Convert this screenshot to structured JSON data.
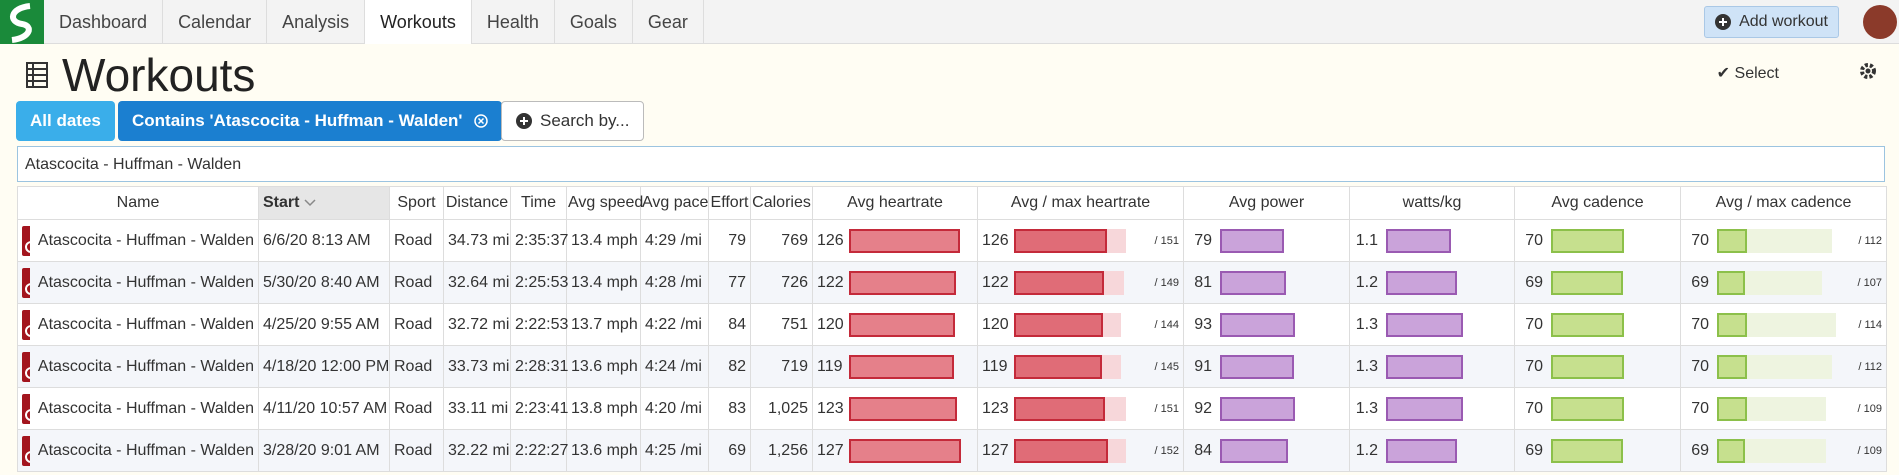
{
  "nav": {
    "tabs": [
      "Dashboard",
      "Calendar",
      "Analysis",
      "Workouts",
      "Health",
      "Goals",
      "Gear"
    ],
    "active": 3,
    "add_button": "Add workout"
  },
  "header": {
    "title": "Workouts",
    "select": "Select"
  },
  "filters": {
    "all_dates": "All dates",
    "contains": "Contains 'Atascocita - Huffman - Walden'",
    "search_by": "Search by..."
  },
  "search": {
    "value": "Atascocita - Huffman - Walden"
  },
  "table": {
    "columns": [
      "Name",
      "Start",
      "Sport",
      "Distance",
      "Time",
      "Avg speed",
      "Avg pace",
      "Effort",
      "Calories",
      "Avg heartrate",
      "Avg / max heartrate",
      "Avg power",
      "watts/kg",
      "Avg cadence",
      "Avg / max cadence"
    ],
    "rows": [
      {
        "name": "Atascocita - Huffman - Walden",
        "start": "6/6/20 8:13 AM",
        "sport": "Road",
        "distance": "34.73 mi",
        "time": "2:35:37",
        "avg_speed": "13.4 mph",
        "avg_pace": "4:29 /mi",
        "effort": 79,
        "calories": 769,
        "avg_heartrate": 126,
        "max_heartrate": {
          "value": 151,
          "label": "/ 151"
        },
        "avg_power": 79,
        "watts_per_kg": 1.1,
        "avg_cadence": 70,
        "max_cadence": {
          "value": 112,
          "label": "/ 112"
        }
      },
      {
        "name": "Atascocita - Huffman - Walden",
        "start": "5/30/20 8:40 AM",
        "sport": "Road",
        "distance": "32.64 mi",
        "time": "2:25:53",
        "avg_speed": "13.4 mph",
        "avg_pace": "4:28 /mi",
        "effort": 77,
        "calories": 726,
        "avg_heartrate": 122,
        "max_heartrate": {
          "value": 149,
          "label": "/ 149"
        },
        "avg_power": 81,
        "watts_per_kg": 1.2,
        "avg_cadence": 69,
        "max_cadence": {
          "value": 107,
          "label": "/ 107"
        }
      },
      {
        "name": "Atascocita - Huffman - Walden",
        "start": "4/25/20 9:55 AM",
        "sport": "Road",
        "distance": "32.72 mi",
        "time": "2:22:53",
        "avg_speed": "13.7 mph",
        "avg_pace": "4:22 /mi",
        "effort": 84,
        "calories": 751,
        "avg_heartrate": 120,
        "max_heartrate": {
          "value": 144,
          "label": "/ 144"
        },
        "avg_power": 93,
        "watts_per_kg": 1.3,
        "avg_cadence": 70,
        "max_cadence": {
          "value": 114,
          "label": "/ 114"
        }
      },
      {
        "name": "Atascocita - Huffman - Walden",
        "start": "4/18/20 12:00 PM",
        "sport": "Road",
        "distance": "33.73 mi",
        "time": "2:28:31",
        "avg_speed": "13.6 mph",
        "avg_pace": "4:24 /mi",
        "effort": 82,
        "calories": 719,
        "avg_heartrate": 119,
        "max_heartrate": {
          "value": 145,
          "label": "/ 145"
        },
        "avg_power": 91,
        "watts_per_kg": 1.3,
        "avg_cadence": 70,
        "max_cadence": {
          "value": 112,
          "label": "/ 112"
        }
      },
      {
        "name": "Atascocita - Huffman - Walden",
        "start": "4/11/20 10:57 AM",
        "sport": "Road",
        "distance": "33.11 mi",
        "time": "2:23:41",
        "avg_speed": "13.8 mph",
        "avg_pace": "4:20 /mi",
        "effort": 83,
        "calories": "1,025",
        "avg_heartrate": 123,
        "max_heartrate": {
          "value": 151,
          "label": "/ 151"
        },
        "avg_power": 92,
        "watts_per_kg": 1.3,
        "avg_cadence": 70,
        "max_cadence": {
          "value": 109,
          "label": "/ 109"
        }
      },
      {
        "name": "Atascocita - Huffman - Walden",
        "start": "3/28/20 9:01 AM",
        "sport": "Road",
        "distance": "32.22 mi",
        "time": "2:22:27",
        "avg_speed": "13.6 mph",
        "avg_pace": "4:25 /mi",
        "effort": 69,
        "calories": "1,256",
        "avg_heartrate": 127,
        "max_heartrate": {
          "value": 152,
          "label": "/ 152"
        },
        "avg_power": 84,
        "watts_per_kg": 1.2,
        "avg_cadence": 69,
        "max_cadence": {
          "value": 109,
          "label": "/ 109"
        }
      }
    ]
  }
}
